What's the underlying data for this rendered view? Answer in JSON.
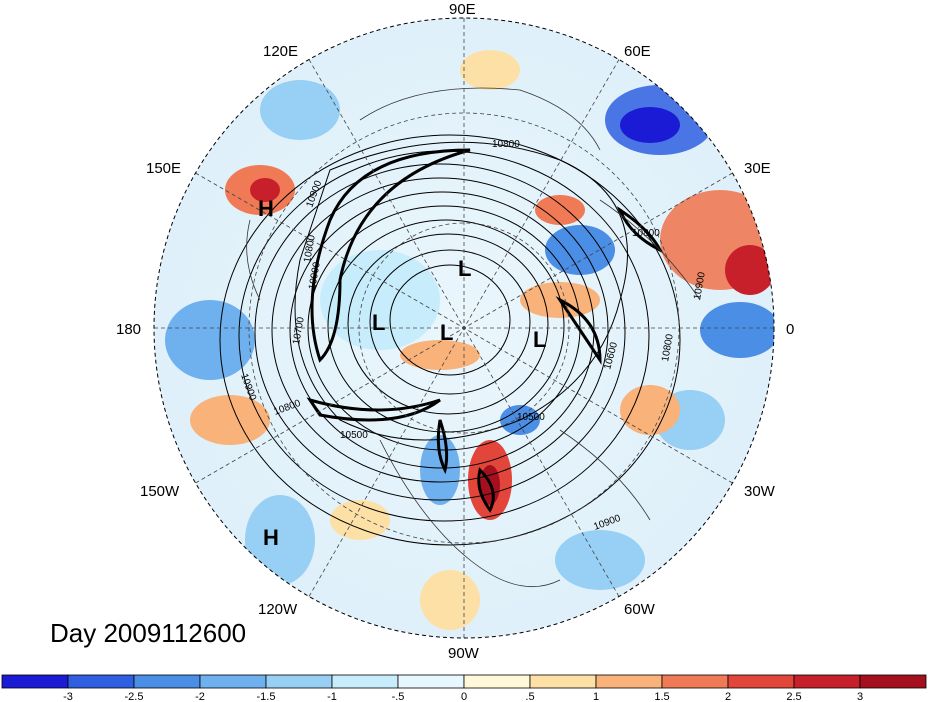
{
  "date_label": "Day 2009112600",
  "longitude_labels": {
    "top": "90E",
    "upper_left": "120E",
    "upper_right": "60E",
    "left_upper": "150E",
    "right_upper": "30E",
    "left": "180",
    "right": "0",
    "left_lower": "150W",
    "right_lower": "30W",
    "lower_left": "120W",
    "lower_right": "60W",
    "bottom": "90W"
  },
  "pressure_centers": [
    {
      "kind": "H",
      "label": "H",
      "id": "h-1"
    },
    {
      "kind": "H",
      "label": "H",
      "id": "h-2"
    },
    {
      "kind": "L",
      "label": "L",
      "id": "l-1"
    },
    {
      "kind": "L",
      "label": "L",
      "id": "l-2"
    },
    {
      "kind": "L",
      "label": "L",
      "id": "l-3"
    },
    {
      "kind": "L",
      "label": "L",
      "id": "l-4"
    }
  ],
  "contour_labels": [
    "10800",
    "10900",
    "10800",
    "10700",
    "10900",
    "10800",
    "10500",
    "10900",
    "10800",
    "10500",
    "10600",
    "10800",
    "10900",
    "10900"
  ],
  "colorbar": {
    "ticks": [
      "-3",
      "-2.5",
      "-2",
      "-1.5",
      "-1",
      "-.5",
      "0",
      ".5",
      "1",
      "1.5",
      "2",
      "2.5",
      "3"
    ],
    "colors": [
      "#1b1bd6",
      "#2f5fe0",
      "#4b8ee6",
      "#6fb0ee",
      "#97cff5",
      "#c7ecfb",
      "#e6f7fd",
      "#fff8d9",
      "#fde0a6",
      "#f8b27a",
      "#f07a55",
      "#e2453a",
      "#c8202b",
      "#a5101e"
    ]
  }
}
